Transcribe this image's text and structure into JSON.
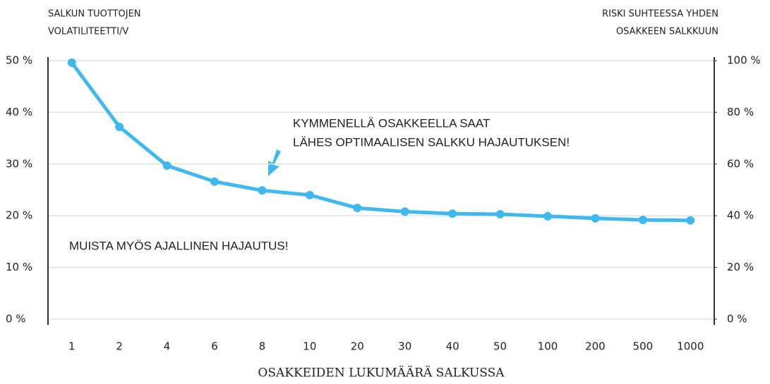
{
  "chart_data": {
    "type": "line",
    "y_axis_label": [
      "SALKUN TUOTTOJEN",
      "VOLATILITEETTI/V"
    ],
    "y2_axis_label": [
      "RISKI SUHTEESSA YHDEN",
      "OSAKKEEN SALKKUUN"
    ],
    "x_axis_label": "OSAKKEIDEN LUKUMÄÄRÄ SALKUSSA",
    "annotations": [
      "KYMMENELLÄ OSAKKEELLA SAAT",
      "LÄHES OPTIMAALISEN  SALKKU HAJAUTUKSEN!",
      "MUISTA MYÖS AJALLINEN HAJAUTUS!"
    ],
    "categories": [
      "1",
      "2",
      "4",
      "6",
      "8",
      "10",
      "20",
      "30",
      "40",
      "50",
      "100",
      "200",
      "500",
      "1000"
    ],
    "series": [
      {
        "color": "#3fb8f0",
        "values": [
          49.6,
          37.2,
          29.7,
          26.6,
          24.9,
          24.0,
          21.5,
          20.8,
          20.4,
          20.3,
          19.9,
          19.5,
          19.2,
          19.1
        ]
      }
    ],
    "ylim": [
      0,
      50
    ],
    "yticks": [
      {
        "value": 0,
        "label": "0 %"
      },
      {
        "value": 10,
        "label": "10 %"
      },
      {
        "value": 20,
        "label": "20 %"
      },
      {
        "value": 30,
        "label": "30 %"
      },
      {
        "value": 40,
        "label": "40 %"
      },
      {
        "value": 50,
        "label": "50 %"
      }
    ],
    "y2lim": [
      0,
      100
    ],
    "y2ticks": [
      {
        "value": 0,
        "label": "0 %"
      },
      {
        "value": 20,
        "label": "20 %"
      },
      {
        "value": 40,
        "label": "40 %"
      },
      {
        "value": 60,
        "label": "60 %"
      },
      {
        "value": 80,
        "label": "80 %"
      },
      {
        "value": 100,
        "label": "100 %"
      }
    ],
    "grid": true
  }
}
